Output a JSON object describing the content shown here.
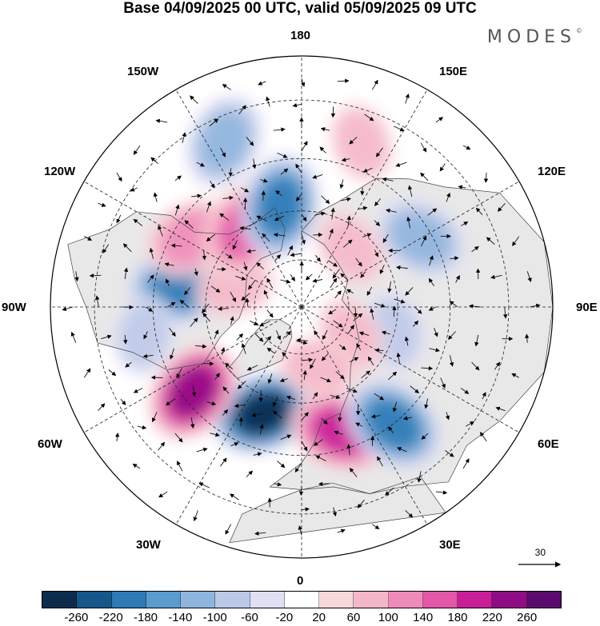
{
  "title": "Base 04/09/2025 00 UTC, valid 05/09/2025 09 UTC",
  "brand": "MODES",
  "brand_mark": "©",
  "map": {
    "projection": "north-polar-stereographic",
    "lon_labels": {
      "top": "180",
      "bottom": "0",
      "left": "90W",
      "right": "90E",
      "upper_left_1": "150W",
      "upper_left_2": "120W",
      "lower_left_1": "60W",
      "lower_left_2": "30W",
      "upper_right_1": "150E",
      "upper_right_2": "120E",
      "lower_right_1": "60E",
      "lower_right_2": "30E"
    },
    "reference_vector": "30",
    "land_color": "#e8e8e8"
  },
  "colorbar": {
    "colors": [
      "#0d2c4d",
      "#15578a",
      "#2d7ab5",
      "#5a9cd0",
      "#8eb5de",
      "#bcc8e8",
      "#e0e0f4",
      "#ffffff",
      "#f9d8dc",
      "#f4b6c8",
      "#ef8bb8",
      "#e257a8",
      "#c81f98",
      "#8f0d84",
      "#5b0b6e"
    ],
    "ticks": [
      "-260",
      "-220",
      "-180",
      "-140",
      "-100",
      "-60",
      "-20",
      "20",
      "60",
      "100",
      "140",
      "180",
      "220",
      "260"
    ]
  },
  "anomalies": [
    {
      "lon": -20,
      "lat": 55,
      "value": -260
    },
    {
      "lon": 18,
      "lat": 50,
      "value": 180
    },
    {
      "lon": 38,
      "lat": 45,
      "value": -180
    },
    {
      "lon": -52,
      "lat": 48,
      "value": 220
    },
    {
      "lon": -100,
      "lat": 52,
      "value": -180
    },
    {
      "lon": -122,
      "lat": 50,
      "value": 100
    },
    {
      "lon": -107,
      "lat": 68,
      "value": 60
    },
    {
      "lon": -145,
      "lat": 60,
      "value": 140
    },
    {
      "lon": -168,
      "lat": 58,
      "value": -180
    },
    {
      "lon": -155,
      "lat": 36,
      "value": -100
    },
    {
      "lon": 120,
      "lat": 48,
      "value": -100
    },
    {
      "lon": 160,
      "lat": 38,
      "value": 60
    },
    {
      "lon": 75,
      "lat": 60,
      "value": -60
    },
    {
      "lon": 140,
      "lat": 66,
      "value": 60
    },
    {
      "lon": 60,
      "lat": 72,
      "value": 60
    },
    {
      "lon": 15,
      "lat": 70,
      "value": 60
    },
    {
      "lon": -80,
      "lat": 42,
      "value": -60
    }
  ]
}
